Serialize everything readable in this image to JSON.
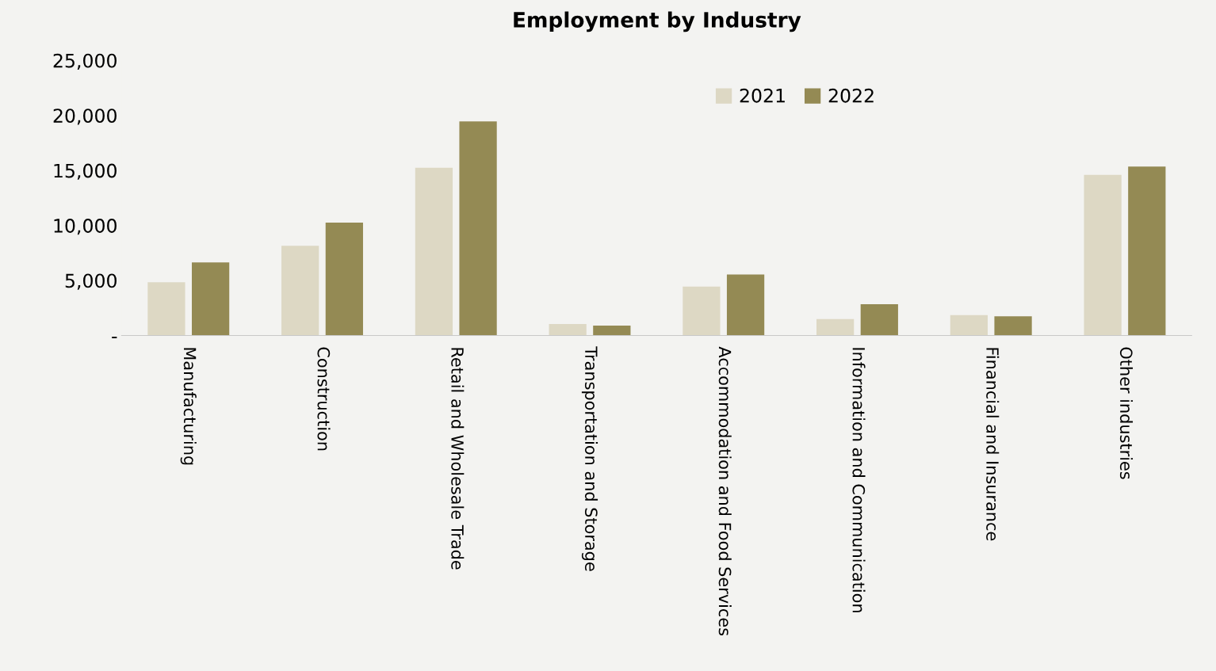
{
  "chart_data": {
    "type": "bar",
    "title": "Employment by Industry",
    "categories": [
      "Manufacturing",
      "Construction",
      "Retail and Wholesale Trade",
      "Transportation and Storage",
      "Accommodation and Food Services",
      "Information and Communication",
      "Financial and Insurance",
      "Other industries"
    ],
    "series": [
      {
        "name": "2021",
        "color": "#ddd8c4",
        "values": [
          4850,
          8150,
          15250,
          1050,
          4450,
          1500,
          1850,
          14600
        ]
      },
      {
        "name": "2022",
        "color": "#948a54",
        "values": [
          6650,
          10250,
          19450,
          900,
          5550,
          2850,
          1750,
          15350
        ]
      }
    ],
    "ylim": [
      0,
      25000
    ],
    "yticks": [
      {
        "value": 0,
        "label": "-"
      },
      {
        "value": 5000,
        "label": "5,000"
      },
      {
        "value": 10000,
        "label": "10,000"
      },
      {
        "value": 15000,
        "label": "15,000"
      },
      {
        "value": 20000,
        "label": "20,000"
      },
      {
        "value": 25000,
        "label": "25,000"
      }
    ],
    "grid": false,
    "legend": "top right"
  }
}
